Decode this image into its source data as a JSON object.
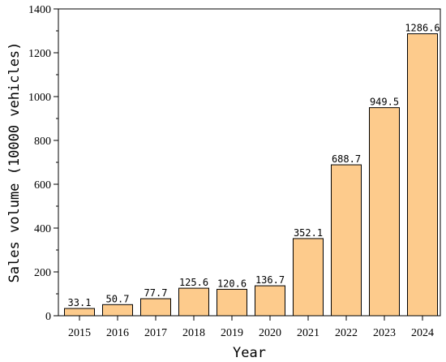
{
  "chart_data": {
    "type": "bar",
    "title": "",
    "xlabel": "Year",
    "ylabel": "Sales volume (10000 vehicles)",
    "categories": [
      "2015",
      "2016",
      "2017",
      "2018",
      "2019",
      "2020",
      "2021",
      "2022",
      "2023",
      "2024"
    ],
    "values": [
      33.1,
      50.7,
      77.7,
      125.6,
      120.6,
      136.7,
      352.1,
      688.7,
      949.5,
      1286.6
    ],
    "value_labels": [
      "33.1",
      "50.7",
      "77.7",
      "125.6",
      "120.6",
      "136.7",
      "352.1",
      "688.7",
      "949.5",
      "1286.6"
    ],
    "ylim": [
      0,
      1400
    ],
    "yticks": [
      0,
      200,
      400,
      600,
      800,
      1000,
      1200,
      1400
    ],
    "grid": false,
    "legend": "none",
    "colors": {
      "bar_fill": "#FDCB8C",
      "bar_stroke": "#000000",
      "axis": "#000000"
    }
  }
}
